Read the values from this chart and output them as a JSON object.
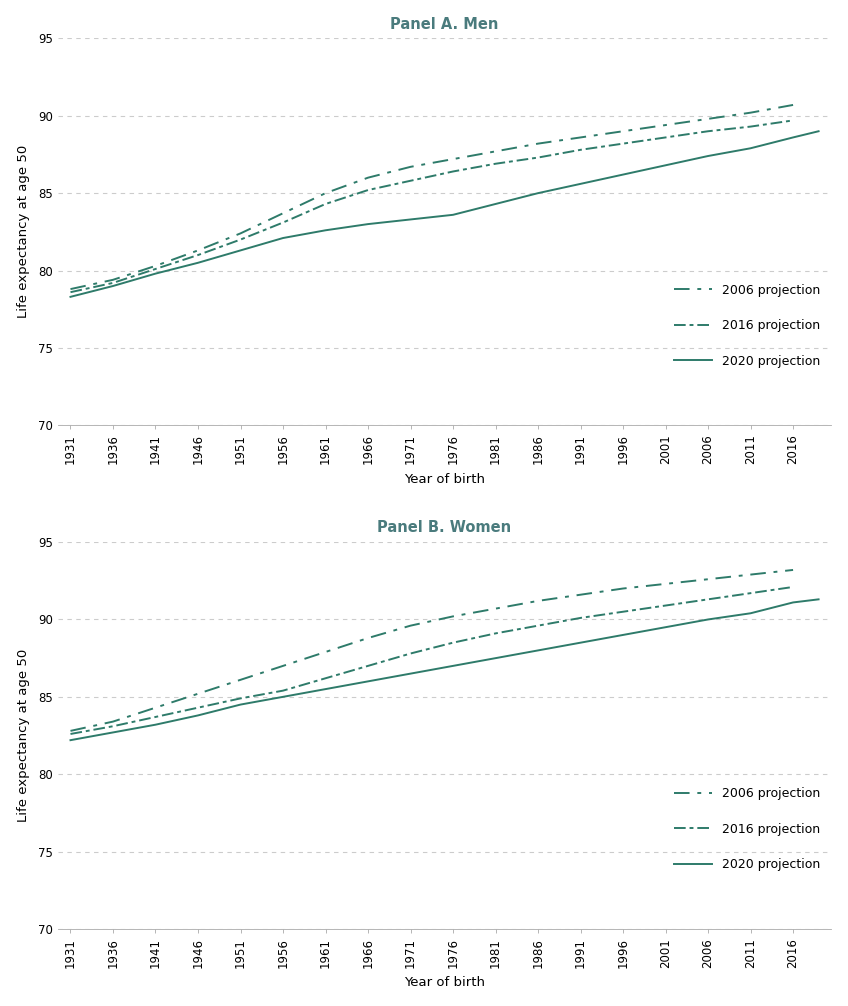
{
  "panel_a_title": "Panel A. Men",
  "panel_b_title": "Panel B. Women",
  "xlabel": "Year of birth",
  "ylabel": "Life expectancy at age 50",
  "line_color": "#2e7b6a",
  "title_color": "#4a7b7d",
  "ylim": [
    70,
    95
  ],
  "yticks": [
    70,
    75,
    80,
    85,
    90,
    95
  ],
  "men": {
    "proj2006_x": [
      1931,
      1936,
      1941,
      1946,
      1951,
      1956,
      1961,
      1966,
      1971,
      1976,
      1981,
      1986,
      1991,
      1996,
      2001,
      2006,
      2011,
      2016
    ],
    "proj2006_y": [
      78.8,
      79.4,
      80.3,
      81.3,
      82.4,
      83.7,
      85.0,
      86.0,
      86.7,
      87.2,
      87.7,
      88.2,
      88.6,
      89.0,
      89.4,
      89.8,
      90.2,
      90.7
    ],
    "proj2016_x": [
      1931,
      1936,
      1941,
      1946,
      1951,
      1956,
      1961,
      1966,
      1971,
      1976,
      1981,
      1986,
      1991,
      1996,
      2001,
      2006,
      2011,
      2016
    ],
    "proj2016_y": [
      78.6,
      79.2,
      80.1,
      81.0,
      82.0,
      83.1,
      84.3,
      85.2,
      85.8,
      86.4,
      86.9,
      87.3,
      87.8,
      88.2,
      88.6,
      89.0,
      89.3,
      89.7
    ],
    "proj2020_x": [
      1931,
      1936,
      1941,
      1946,
      1951,
      1956,
      1961,
      1966,
      1971,
      1976,
      1981,
      1986,
      1991,
      1996,
      2001,
      2006,
      2011,
      2016,
      2019
    ],
    "proj2020_y": [
      78.3,
      79.0,
      79.8,
      80.5,
      81.3,
      82.1,
      82.6,
      83.0,
      83.3,
      83.6,
      84.3,
      85.0,
      85.6,
      86.2,
      86.8,
      87.4,
      87.9,
      88.6,
      89.0
    ]
  },
  "women": {
    "proj2006_x": [
      1931,
      1936,
      1941,
      1946,
      1951,
      1956,
      1961,
      1966,
      1971,
      1976,
      1981,
      1986,
      1991,
      1996,
      2001,
      2006,
      2011,
      2016
    ],
    "proj2006_y": [
      82.8,
      83.4,
      84.3,
      85.2,
      86.1,
      87.0,
      87.9,
      88.8,
      89.6,
      90.2,
      90.7,
      91.2,
      91.6,
      92.0,
      92.3,
      92.6,
      92.9,
      93.2
    ],
    "proj2016_x": [
      1931,
      1936,
      1941,
      1946,
      1951,
      1956,
      1961,
      1966,
      1971,
      1976,
      1981,
      1986,
      1991,
      1996,
      2001,
      2006,
      2011,
      2016
    ],
    "proj2016_y": [
      82.6,
      83.1,
      83.7,
      84.3,
      84.9,
      85.4,
      86.2,
      87.0,
      87.8,
      88.5,
      89.1,
      89.6,
      90.1,
      90.5,
      90.9,
      91.3,
      91.7,
      92.1
    ],
    "proj2020_x": [
      1931,
      1936,
      1941,
      1946,
      1951,
      1956,
      1961,
      1966,
      1971,
      1976,
      1981,
      1986,
      1991,
      1996,
      2001,
      2006,
      2011,
      2016,
      2019
    ],
    "proj2020_y": [
      82.2,
      82.7,
      83.2,
      83.8,
      84.5,
      85.0,
      85.5,
      86.0,
      86.5,
      87.0,
      87.5,
      88.0,
      88.5,
      89.0,
      89.5,
      90.0,
      90.4,
      91.1,
      91.3
    ]
  },
  "background_color": "#ffffff",
  "grid_color": "#cccccc",
  "title_fontsize": 10.5,
  "label_fontsize": 9.5,
  "tick_fontsize": 8.5,
  "legend_fontsize": 9.0
}
